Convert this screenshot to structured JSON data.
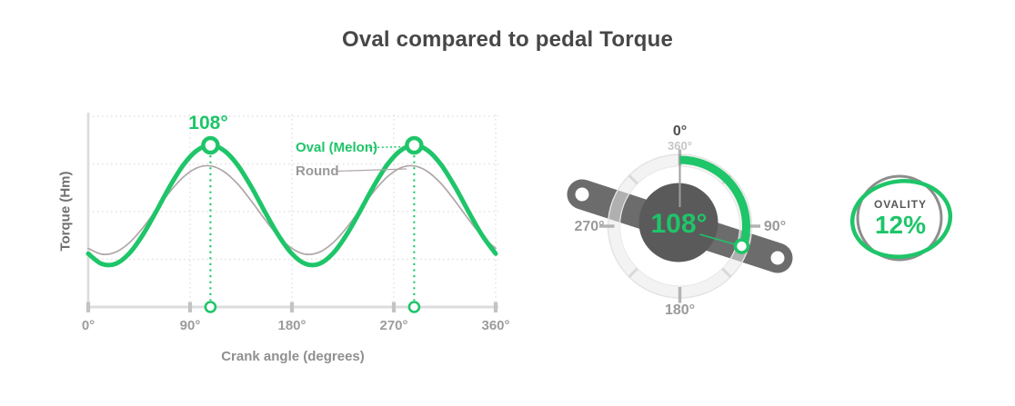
{
  "title": "Oval compared to pedal Torque",
  "colors": {
    "accent_green": "#1ec569",
    "round_gray": "#b0a7a7",
    "title_text": "#474747",
    "axis_text": "#9c9c9c",
    "crank_arm": "#6c6c6c",
    "hub": "#5a5a5a",
    "ovality_ring_gray": "#8d8d8d"
  },
  "chart_data": {
    "type": "line",
    "title": "",
    "xlabel": "Crank angle (degrees)",
    "ylabel": "Torque (Hm)",
    "x_ticks": [
      "0°",
      "90°",
      "180°",
      "270°",
      "360°"
    ],
    "x_range_deg": [
      0,
      360
    ],
    "y_normalized_range": [
      0,
      1
    ],
    "grid": true,
    "legend_position": "inside-top-right",
    "peak": {
      "label": "108°",
      "angles_deg": [
        108,
        288
      ]
    },
    "series": [
      {
        "name": "Oval (Melon)",
        "color": "#1ec569",
        "x_deg": [
          0,
          12,
          24,
          36,
          48,
          60,
          72,
          84,
          96,
          108,
          120,
          132,
          144,
          156,
          168,
          180,
          192,
          204,
          216,
          228,
          240,
          252,
          264,
          276,
          288,
          300,
          312,
          324,
          336,
          348,
          360
        ],
        "values": [
          0.096,
          0.011,
          0.011,
          0.096,
          0.25,
          0.448,
          0.655,
          0.835,
          0.957,
          1,
          0.957,
          0.835,
          0.655,
          0.448,
          0.25,
          0.096,
          0.011,
          0.011,
          0.096,
          0.25,
          0.448,
          0.655,
          0.835,
          0.957,
          1,
          0.957,
          0.835,
          0.655,
          0.448,
          0.25,
          0.096
        ]
      },
      {
        "name": "Round",
        "color": "#b0a7a7",
        "x_deg": [
          0,
          12,
          24,
          36,
          48,
          60,
          72,
          84,
          96,
          108,
          120,
          132,
          144,
          156,
          168,
          180,
          192,
          204,
          216,
          228,
          240,
          252,
          264,
          276,
          288,
          300,
          312,
          324,
          336,
          348,
          360
        ],
        "values": [
          0.14,
          0.092,
          0.108,
          0.185,
          0.309,
          0.46,
          0.611,
          0.735,
          0.812,
          0.828,
          0.78,
          0.678,
          0.537,
          0.383,
          0.242,
          0.14,
          0.092,
          0.108,
          0.185,
          0.309,
          0.46,
          0.611,
          0.735,
          0.812,
          0.828,
          0.78,
          0.678,
          0.537,
          0.383,
          0.242,
          0.14
        ]
      }
    ]
  },
  "dial": {
    "value_label": "108°",
    "angle_deg": 108,
    "labels": {
      "top_primary": "0°",
      "top_secondary": "360°",
      "right": "90°",
      "bottom": "180°",
      "left": "270°"
    }
  },
  "ovality": {
    "label": "OVALITY",
    "value": "12%"
  }
}
